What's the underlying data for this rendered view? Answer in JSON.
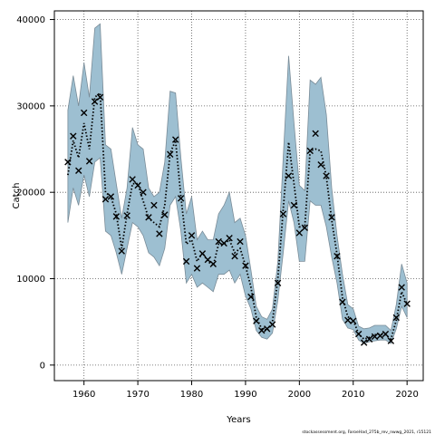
{
  "chart_data": {
    "type": "line",
    "xlabel": "Years",
    "ylabel": "Catch",
    "xlim": [
      1954.5,
      2023
    ],
    "ylim": [
      -1800,
      41000
    ],
    "xticks": [
      1960,
      1970,
      1980,
      1990,
      2000,
      2010,
      2020
    ],
    "yticks": [
      0,
      10000,
      20000,
      30000,
      40000
    ],
    "grid": true,
    "colors": {
      "band_fill": "#9dbfd1",
      "band_edge": "#7a8c98",
      "estimate_line": "#000000",
      "observation_marker": "#000000"
    },
    "x": [
      1957,
      1958,
      1959,
      1960,
      1961,
      1962,
      1963,
      1964,
      1965,
      1966,
      1967,
      1968,
      1969,
      1970,
      1971,
      1972,
      1973,
      1974,
      1975,
      1976,
      1977,
      1978,
      1979,
      1980,
      1981,
      1982,
      1983,
      1984,
      1985,
      1986,
      1987,
      1988,
      1989,
      1990,
      1991,
      1992,
      1993,
      1994,
      1995,
      1996,
      1997,
      1998,
      1999,
      2000,
      2001,
      2002,
      2003,
      2004,
      2005,
      2006,
      2007,
      2008,
      2009,
      2010,
      2011,
      2012,
      2013,
      2014,
      2015,
      2016,
      2017,
      2018,
      2019,
      2020
    ],
    "series": [
      {
        "role": "estimate",
        "values": [
          22000,
          26000,
          24000,
          28000,
          25000,
          31000,
          31500,
          20000,
          19500,
          17500,
          13500,
          17500,
          21000,
          21000,
          19000,
          17000,
          16500,
          16000,
          18500,
          24500,
          26000,
          19500,
          14000,
          14500,
          12000,
          13000,
          12000,
          11500,
          14000,
          14000,
          14500,
          13000,
          13500,
          11500,
          9000,
          5500,
          4200,
          4000,
          5000,
          10000,
          18000,
          25800,
          21000,
          16000,
          16000,
          24800,
          25000,
          24800,
          21800,
          16800,
          12800,
          7800,
          5600,
          5200,
          3600,
          3000,
          3200,
          3500,
          3600,
          3500,
          3000,
          5200,
          8500,
          7000
        ],
        "upper": [
          29500,
          33500,
          30000,
          35000,
          31000,
          39000,
          39500,
          25500,
          25000,
          21000,
          17000,
          20500,
          27500,
          25500,
          25000,
          20500,
          19500,
          20000,
          23500,
          31700,
          31500,
          24000,
          17500,
          19500,
          14500,
          15500,
          14500,
          14500,
          17500,
          18500,
          20000,
          16500,
          17000,
          15000,
          11000,
          6800,
          5600,
          5300,
          6500,
          12000,
          24000,
          35800,
          28000,
          20800,
          20200,
          33000,
          32500,
          33300,
          29000,
          20500,
          15000,
          10500,
          7000,
          6500,
          4500,
          4200,
          4300,
          4600,
          4600,
          4600,
          4000,
          7000,
          11700,
          9500
        ],
        "lower": [
          16500,
          20500,
          18500,
          22000,
          19500,
          23500,
          24000,
          15500,
          15000,
          13000,
          10500,
          13500,
          16500,
          16000,
          15000,
          13000,
          12500,
          11500,
          13500,
          18500,
          19500,
          15500,
          9500,
          10500,
          9000,
          9500,
          9000,
          8500,
          10500,
          10500,
          11000,
          9500,
          10500,
          8000,
          6500,
          4000,
          3200,
          3000,
          3700,
          7500,
          13000,
          19000,
          16500,
          12000,
          12000,
          19000,
          18500,
          18500,
          16000,
          12500,
          9500,
          5300,
          4300,
          4100,
          2900,
          2500,
          2700,
          2800,
          2900,
          2900,
          2500,
          4200,
          6800,
          5500
        ]
      },
      {
        "role": "observed",
        "marker": "x",
        "values": [
          23500,
          26500,
          22500,
          29200,
          23600,
          30500,
          31000,
          19200,
          19500,
          17200,
          13200,
          17300,
          21500,
          20800,
          20000,
          17100,
          18500,
          15200,
          17400,
          24400,
          26100,
          19300,
          12000,
          15000,
          11200,
          12900,
          12200,
          11700,
          14300,
          14100,
          14700,
          12600,
          14300,
          11500,
          7900,
          5100,
          4000,
          4200,
          4700,
          9500,
          17500,
          21900,
          18500,
          15300,
          15900,
          24800,
          26800,
          23200,
          21900,
          17100,
          12600,
          7300,
          5200,
          5100,
          3600,
          2600,
          3000,
          3300,
          3400,
          3600,
          2800,
          5500,
          9000,
          7100
        ]
      }
    ]
  },
  "footer": {
    "credit": "stockassessment.org, FaroeHad_275b_rev_nwwg_2021, r15121"
  }
}
